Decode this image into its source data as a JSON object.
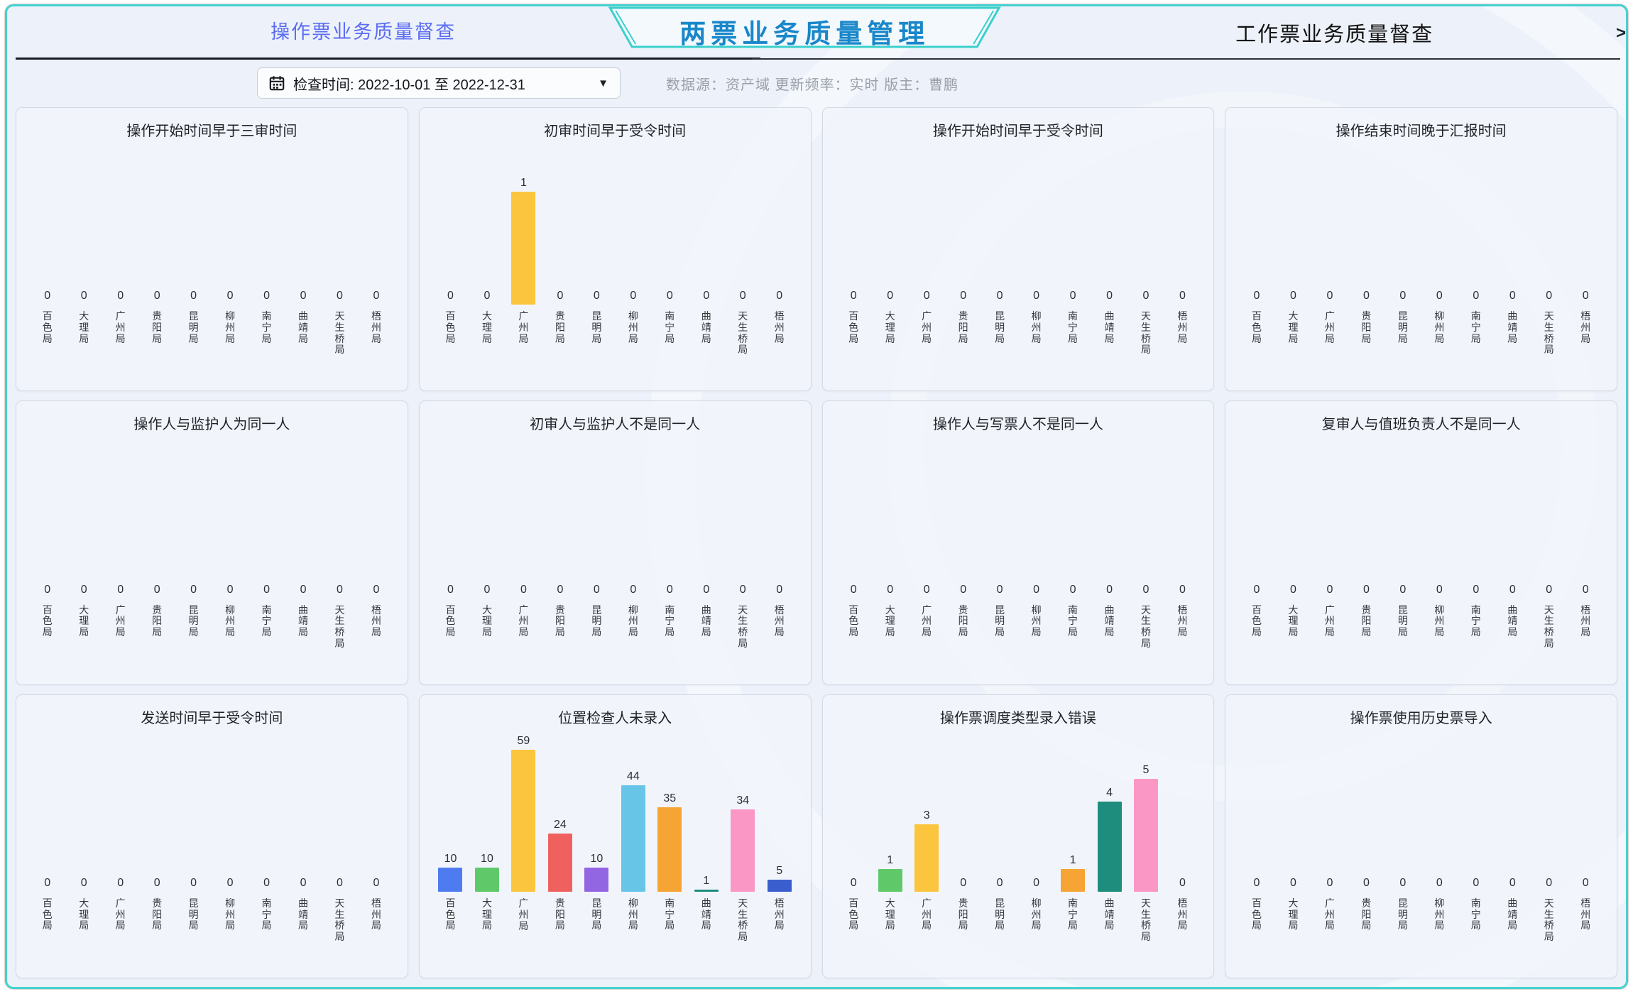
{
  "header": {
    "left_tab": "操作票业务质量督查",
    "center_title": "两票业务质量管理",
    "right_tab": "工作票业务质量督查",
    "next_arrow": ">"
  },
  "toolbar": {
    "date_filter_label": "检查时间: 2022-10-01 至 2022-12-31",
    "dropdown_arrow": "▼",
    "meta_text": "数据源：资产域  更新频率：实时  版主：曹鹏"
  },
  "colors": {
    "frame_border": "#43d3cf",
    "banner_text": "#1987c9",
    "left_tab_text": "#5b6cf2",
    "right_tab_text": "#121212",
    "meta_text": "#9aa0a9",
    "panel_bg": "#f1f5fb",
    "palette": [
      "#4e7cf0",
      "#5fc96a",
      "#fbc53d",
      "#ef615e",
      "#9265e2",
      "#67c5e8",
      "#f6a434",
      "#1e8d7d",
      "#fa97c5",
      "#3a5ecd"
    ]
  },
  "chart_data": [
    {
      "type": "bar",
      "title": "操作开始时间早于三审时间",
      "ylabel": "",
      "xlabel": "",
      "ylim": [
        0,
        1
      ],
      "grid": false,
      "legend": "none",
      "categories": [
        "百色局",
        "大理局",
        "广州局",
        "贵阳局",
        "昆明局",
        "柳州局",
        "南宁局",
        "曲靖局",
        "天生桥局",
        "梧州局"
      ],
      "values": [
        0,
        0,
        0,
        0,
        0,
        0,
        0,
        0,
        0,
        0
      ]
    },
    {
      "type": "bar",
      "title": "初审时间早于受令时间",
      "ylabel": "",
      "xlabel": "",
      "ylim": [
        0,
        1.5
      ],
      "grid": false,
      "legend": "none",
      "categories": [
        "百色局",
        "大理局",
        "广州局",
        "贵阳局",
        "昆明局",
        "柳州局",
        "南宁局",
        "曲靖局",
        "天生桥局",
        "梧州局"
      ],
      "values": [
        0,
        0,
        1,
        0,
        0,
        0,
        0,
        0,
        0,
        0
      ]
    },
    {
      "type": "bar",
      "title": "操作开始时间早于受令时间",
      "ylabel": "",
      "xlabel": "",
      "ylim": [
        0,
        1
      ],
      "grid": false,
      "legend": "none",
      "categories": [
        "百色局",
        "大理局",
        "广州局",
        "贵阳局",
        "昆明局",
        "柳州局",
        "南宁局",
        "曲靖局",
        "天生桥局",
        "梧州局"
      ],
      "values": [
        0,
        0,
        0,
        0,
        0,
        0,
        0,
        0,
        0,
        0
      ]
    },
    {
      "type": "bar",
      "title": "操作结束时间晚于汇报时间",
      "ylabel": "",
      "xlabel": "",
      "ylim": [
        0,
        1
      ],
      "grid": false,
      "legend": "none",
      "categories": [
        "百色局",
        "大理局",
        "广州局",
        "贵阳局",
        "昆明局",
        "柳州局",
        "南宁局",
        "曲靖局",
        "天生桥局",
        "梧州局"
      ],
      "values": [
        0,
        0,
        0,
        0,
        0,
        0,
        0,
        0,
        0,
        0
      ]
    },
    {
      "type": "bar",
      "title": "操作人与监护人为同一人",
      "ylabel": "",
      "xlabel": "",
      "ylim": [
        0,
        1
      ],
      "grid": false,
      "legend": "none",
      "categories": [
        "百色局",
        "大理局",
        "广州局",
        "贵阳局",
        "昆明局",
        "柳州局",
        "南宁局",
        "曲靖局",
        "天生桥局",
        "梧州局"
      ],
      "values": [
        0,
        0,
        0,
        0,
        0,
        0,
        0,
        0,
        0,
        0
      ]
    },
    {
      "type": "bar",
      "title": "初审人与监护人不是同一人",
      "ylabel": "",
      "xlabel": "",
      "ylim": [
        0,
        1
      ],
      "grid": false,
      "legend": "none",
      "categories": [
        "百色局",
        "大理局",
        "广州局",
        "贵阳局",
        "昆明局",
        "柳州局",
        "南宁局",
        "曲靖局",
        "天生桥局",
        "梧州局"
      ],
      "values": [
        0,
        0,
        0,
        0,
        0,
        0,
        0,
        0,
        0,
        0
      ]
    },
    {
      "type": "bar",
      "title": "操作人与写票人不是同一人",
      "ylabel": "",
      "xlabel": "",
      "ylim": [
        0,
        1
      ],
      "grid": false,
      "legend": "none",
      "categories": [
        "百色局",
        "大理局",
        "广州局",
        "贵阳局",
        "昆明局",
        "柳州局",
        "南宁局",
        "曲靖局",
        "天生桥局",
        "梧州局"
      ],
      "values": [
        0,
        0,
        0,
        0,
        0,
        0,
        0,
        0,
        0,
        0
      ]
    },
    {
      "type": "bar",
      "title": "复审人与值班负责人不是同一人",
      "ylabel": "",
      "xlabel": "",
      "ylim": [
        0,
        1
      ],
      "grid": false,
      "legend": "none",
      "categories": [
        "百色局",
        "大理局",
        "广州局",
        "贵阳局",
        "昆明局",
        "柳州局",
        "南宁局",
        "曲靖局",
        "天生桥局",
        "梧州局"
      ],
      "values": [
        0,
        0,
        0,
        0,
        0,
        0,
        0,
        0,
        0,
        0
      ]
    },
    {
      "type": "bar",
      "title": "发送时间早于受令时间",
      "ylabel": "",
      "xlabel": "",
      "ylim": [
        0,
        1
      ],
      "grid": false,
      "legend": "none",
      "categories": [
        "百色局",
        "大理局",
        "广州局",
        "贵阳局",
        "昆明局",
        "柳州局",
        "南宁局",
        "曲靖局",
        "天生桥局",
        "梧州局"
      ],
      "values": [
        0,
        0,
        0,
        0,
        0,
        0,
        0,
        0,
        0,
        0
      ]
    },
    {
      "type": "bar",
      "title": "位置检查人未录入",
      "ylabel": "",
      "xlabel": "",
      "ylim": [
        0,
        70
      ],
      "grid": false,
      "legend": "none",
      "categories": [
        "百色局",
        "大理局",
        "广州局",
        "贵阳局",
        "昆明局",
        "柳州局",
        "南宁局",
        "曲靖局",
        "天生桥局",
        "梧州局"
      ],
      "values": [
        10,
        10,
        59,
        24,
        10,
        44,
        35,
        1,
        34,
        5
      ]
    },
    {
      "type": "bar",
      "title": "操作票调度类型录入错误",
      "ylabel": "",
      "xlabel": "",
      "ylim": [
        0,
        7.5
      ],
      "grid": false,
      "legend": "none",
      "categories": [
        "百色局",
        "大理局",
        "广州局",
        "贵阳局",
        "昆明局",
        "柳州局",
        "南宁局",
        "曲靖局",
        "天生桥局",
        "梧州局"
      ],
      "values": [
        0,
        1,
        3,
        0,
        0,
        0,
        1,
        4,
        5,
        0
      ]
    },
    {
      "type": "bar",
      "title": "操作票使用历史票导入",
      "ylabel": "",
      "xlabel": "",
      "ylim": [
        0,
        1
      ],
      "grid": false,
      "legend": "none",
      "categories": [
        "百色局",
        "大理局",
        "广州局",
        "贵阳局",
        "昆明局",
        "柳州局",
        "南宁局",
        "曲靖局",
        "天生桥局",
        "梧州局"
      ],
      "values": [
        0,
        0,
        0,
        0,
        0,
        0,
        0,
        0,
        0,
        0
      ]
    }
  ]
}
